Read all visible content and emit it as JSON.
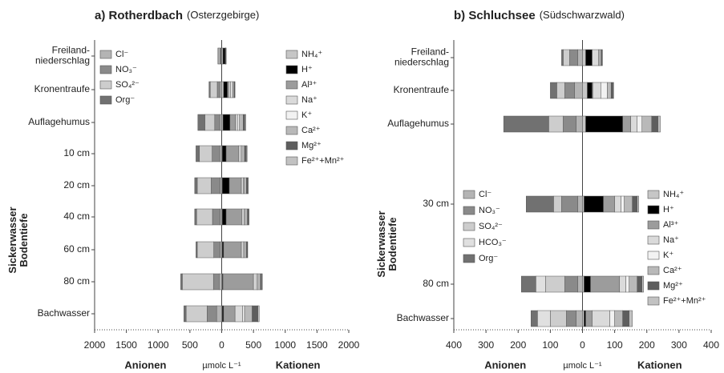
{
  "chart_data": [
    {
      "type": "bar",
      "title": "a) Rotherdbach",
      "subtitle": "(Osterzgebirge)",
      "categories": [
        "Freiland-\nniederschlag",
        "Kronentraufe",
        "Auflagehumus",
        "10 cm",
        "20 cm",
        "40 cm",
        "60 cm",
        "80 cm",
        "Bachwasser"
      ],
      "ylabel": "Sickerwasser\nBodentiefe",
      "xlabel_left": "Anionen",
      "xlabel": "µmolc L⁻¹",
      "xlabel_right": "Kationen",
      "xlim": [
        -2000,
        2000
      ],
      "xticks": [
        {
          "value": -2000,
          "label": "2000"
        },
        {
          "value": -1500,
          "label": "1500"
        },
        {
          "value": -1000,
          "label": "1000"
        },
        {
          "value": -500,
          "label": "500"
        },
        0,
        500,
        1000,
        1500,
        2000
      ],
      "series": [
        {
          "name": "Cl⁻",
          "color": "#b4b4b4",
          "legend": "left",
          "values": [
            -10,
            -30,
            -30,
            -30,
            -25,
            -25,
            -25,
            -40,
            -80
          ]
        },
        {
          "name": "NO₃⁻",
          "color": "#8a8a8a",
          "legend": "left",
          "values": [
            -20,
            -40,
            -80,
            -120,
            -140,
            -120,
            -100,
            -90,
            -150
          ]
        },
        {
          "name": "SO₄²⁻",
          "color": "#cdcdcd",
          "legend": "left",
          "values": [
            -25,
            -110,
            -155,
            -200,
            -220,
            -250,
            -260,
            -490,
            -330
          ]
        },
        {
          "name": "Org⁻",
          "color": "#717171",
          "legend": "left",
          "values": [
            -5,
            -20,
            -110,
            -55,
            -40,
            -30,
            -20,
            -25,
            -35
          ]
        },
        {
          "name": "NH₄⁺",
          "color": "#c6c6c6",
          "legend": "right",
          "values": [
            20,
            30,
            20,
            10,
            10,
            10,
            10,
            10,
            10
          ]
        },
        {
          "name": "H⁺",
          "color": "#000000",
          "legend": "right",
          "values": [
            35,
            60,
            110,
            60,
            110,
            60,
            20,
            10,
            20
          ]
        },
        {
          "name": "Al³⁺",
          "color": "#9c9c9c",
          "legend": "right",
          "values": [
            0,
            20,
            90,
            200,
            190,
            250,
            280,
            480,
            180
          ]
        },
        {
          "name": "Na⁺",
          "color": "#dadada",
          "legend": "right",
          "values": [
            5,
            30,
            30,
            30,
            30,
            35,
            35,
            50,
            120
          ]
        },
        {
          "name": "K⁺",
          "color": "#f2f2f2",
          "legend": "right",
          "values": [
            2,
            30,
            30,
            20,
            15,
            15,
            15,
            20,
            30
          ]
        },
        {
          "name": "Ca²⁺",
          "color": "#b9b9b9",
          "legend": "right",
          "values": [
            5,
            25,
            60,
            40,
            35,
            35,
            30,
            40,
            120
          ]
        },
        {
          "name": "Mg²⁺",
          "color": "#5e5e5e",
          "legend": "right",
          "values": [
            2,
            10,
            25,
            30,
            20,
            20,
            15,
            20,
            90
          ]
        },
        {
          "name": "Fe²⁺+Mn²⁺",
          "color": "#c2c2c2",
          "legend": "right",
          "values": [
            1,
            5,
            15,
            10,
            10,
            5,
            5,
            10,
            20
          ]
        }
      ]
    },
    {
      "type": "bar",
      "title": "b) Schluchsee",
      "subtitle": "(Südschwarzwald)",
      "categories": [
        "Freiland-\nniederschlag",
        "Kronentraufe",
        "Auflagehumus",
        "30 cm",
        "80 cm",
        "Bachwasser"
      ],
      "ylabel": "Sickerwasser\nBodentiefe",
      "xlabel_left": "Anionen",
      "xlabel": "µmolc L⁻¹",
      "xlabel_right": "Kationen",
      "xlim": [
        -400,
        400
      ],
      "xticks": [
        {
          "value": -400,
          "label": "400"
        },
        {
          "value": -300,
          "label": "300"
        },
        {
          "value": -200,
          "label": "200"
        },
        {
          "value": -100,
          "label": "100"
        },
        0,
        100,
        200,
        300,
        400
      ],
      "series": [
        {
          "name": "Cl⁻",
          "color": "#b4b4b4",
          "legend": "left",
          "values": [
            -15,
            -25,
            -20,
            -15,
            -15,
            -20
          ]
        },
        {
          "name": "NO₃⁻",
          "color": "#8a8a8a",
          "legend": "left",
          "values": [
            -25,
            -30,
            -40,
            -50,
            -40,
            -30
          ]
        },
        {
          "name": "SO₄²⁻",
          "color": "#cdcdcd",
          "legend": "left",
          "values": [
            -20,
            -25,
            -45,
            -25,
            -60,
            -50
          ]
        },
        {
          "name": "HCO₃⁻",
          "color": "#e0e0e0",
          "legend": "left",
          "values": [
            0,
            0,
            0,
            0,
            -30,
            -40
          ]
        },
        {
          "name": "Org⁻",
          "color": "#717171",
          "legend": "left",
          "values": [
            -5,
            -20,
            -140,
            -85,
            -45,
            -20
          ]
        },
        {
          "name": "NH₄⁺",
          "color": "#c6c6c6",
          "legend": "right",
          "values": [
            10,
            15,
            10,
            5,
            5,
            5
          ]
        },
        {
          "name": "H⁺",
          "color": "#000000",
          "legend": "right",
          "values": [
            20,
            15,
            115,
            60,
            20,
            5
          ]
        },
        {
          "name": "Al³⁺",
          "color": "#9c9c9c",
          "legend": "right",
          "values": [
            0,
            2,
            25,
            35,
            90,
            20
          ]
        },
        {
          "name": "Na⁺",
          "color": "#dadada",
          "legend": "right",
          "values": [
            20,
            25,
            20,
            20,
            20,
            55
          ]
        },
        {
          "name": "K⁺",
          "color": "#f2f2f2",
          "legend": "right",
          "values": [
            3,
            20,
            15,
            10,
            10,
            15
          ]
        },
        {
          "name": "Ca²⁺",
          "color": "#b9b9b9",
          "legend": "right",
          "values": [
            5,
            12,
            30,
            25,
            25,
            25
          ]
        },
        {
          "name": "Mg²⁺",
          "color": "#5e5e5e",
          "legend": "right",
          "values": [
            3,
            6,
            20,
            15,
            15,
            20
          ]
        },
        {
          "name": "Fe²⁺+Mn²⁺",
          "color": "#c2c2c2",
          "legend": "right",
          "values": [
            1,
            2,
            7,
            5,
            5,
            10
          ]
        }
      ]
    }
  ]
}
